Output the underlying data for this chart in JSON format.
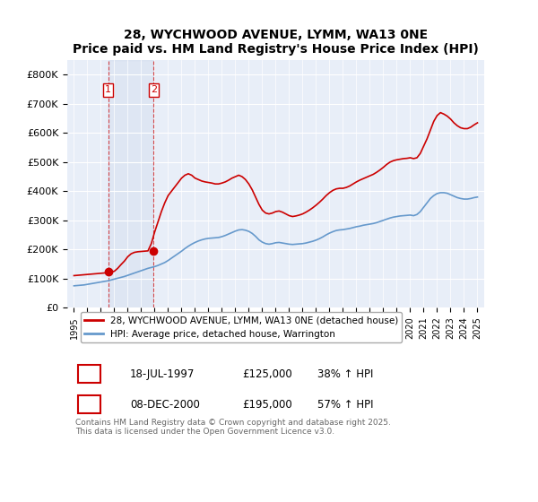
{
  "title": "28, WYCHWOOD AVENUE, LYMM, WA13 0NE",
  "subtitle": "Price paid vs. HM Land Registry's House Price Index (HPI)",
  "legend_label_red": "28, WYCHWOOD AVENUE, LYMM, WA13 0NE (detached house)",
  "legend_label_blue": "HPI: Average price, detached house, Warrington",
  "purchase1_label": "1",
  "purchase1_date": "18-JUL-1997",
  "purchase1_price": "£125,000",
  "purchase1_hpi": "38% ↑ HPI",
  "purchase1_year": 1997.54,
  "purchase1_value": 125000,
  "purchase2_label": "2",
  "purchase2_date": "08-DEC-2000",
  "purchase2_price": "£195,000",
  "purchase2_hpi": "57% ↑ HPI",
  "purchase2_year": 2000.93,
  "purchase2_value": 195000,
  "ylabel_values": [
    "£0",
    "£100K",
    "£200K",
    "£300K",
    "£400K",
    "£500K",
    "£600K",
    "£700K",
    "£800K"
  ],
  "ytick_values": [
    0,
    100000,
    200000,
    300000,
    400000,
    500000,
    600000,
    700000,
    800000
  ],
  "ylim": [
    0,
    850000
  ],
  "xlim_start": 1994.5,
  "xlim_end": 2025.5,
  "background_color": "#f0f4fa",
  "plot_bg_color": "#e8eef8",
  "grid_color": "#ffffff",
  "red_color": "#cc0000",
  "blue_color": "#6699cc",
  "copyright_text": "Contains HM Land Registry data © Crown copyright and database right 2025.\nThis data is licensed under the Open Government Licence v3.0.",
  "hpi_years": [
    1995,
    1995.25,
    1995.5,
    1995.75,
    1996,
    1996.25,
    1996.5,
    1996.75,
    1997,
    1997.25,
    1997.5,
    1997.75,
    1998,
    1998.25,
    1998.5,
    1998.75,
    1999,
    1999.25,
    1999.5,
    1999.75,
    2000,
    2000.25,
    2000.5,
    2000.75,
    2001,
    2001.25,
    2001.5,
    2001.75,
    2002,
    2002.25,
    2002.5,
    2002.75,
    2003,
    2003.25,
    2003.5,
    2003.75,
    2004,
    2004.25,
    2004.5,
    2004.75,
    2005,
    2005.25,
    2005.5,
    2005.75,
    2006,
    2006.25,
    2006.5,
    2006.75,
    2007,
    2007.25,
    2007.5,
    2007.75,
    2008,
    2008.25,
    2008.5,
    2008.75,
    2009,
    2009.25,
    2009.5,
    2009.75,
    2010,
    2010.25,
    2010.5,
    2010.75,
    2011,
    2011.25,
    2011.5,
    2011.75,
    2012,
    2012.25,
    2012.5,
    2012.75,
    2013,
    2013.25,
    2013.5,
    2013.75,
    2014,
    2014.25,
    2014.5,
    2014.75,
    2015,
    2015.25,
    2015.5,
    2015.75,
    2016,
    2016.25,
    2016.5,
    2016.75,
    2017,
    2017.25,
    2017.5,
    2017.75,
    2018,
    2018.25,
    2018.5,
    2018.75,
    2019,
    2019.25,
    2019.5,
    2019.75,
    2020,
    2020.25,
    2020.5,
    2020.75,
    2021,
    2021.25,
    2021.5,
    2021.75,
    2022,
    2022.25,
    2022.5,
    2022.75,
    2023,
    2023.25,
    2023.5,
    2023.75,
    2024,
    2024.25,
    2024.5,
    2024.75,
    2025
  ],
  "hpi_values": [
    75000,
    76000,
    77000,
    78000,
    80000,
    82000,
    84000,
    86000,
    88000,
    90000,
    92000,
    95000,
    98000,
    101000,
    104000,
    107000,
    111000,
    115000,
    119000,
    123000,
    127000,
    131000,
    135000,
    138000,
    141000,
    145000,
    150000,
    155000,
    162000,
    170000,
    178000,
    186000,
    194000,
    203000,
    211000,
    218000,
    224000,
    229000,
    233000,
    236000,
    238000,
    239000,
    240000,
    241000,
    244000,
    248000,
    253000,
    258000,
    263000,
    267000,
    268000,
    266000,
    262000,
    255000,
    245000,
    233000,
    225000,
    220000,
    218000,
    220000,
    223000,
    224000,
    222000,
    220000,
    218000,
    217000,
    218000,
    219000,
    220000,
    222000,
    225000,
    228000,
    232000,
    237000,
    243000,
    250000,
    256000,
    261000,
    265000,
    267000,
    268000,
    270000,
    272000,
    275000,
    278000,
    280000,
    283000,
    285000,
    287000,
    289000,
    292000,
    296000,
    300000,
    304000,
    308000,
    311000,
    313000,
    315000,
    316000,
    317000,
    318000,
    316000,
    320000,
    330000,
    345000,
    360000,
    375000,
    385000,
    392000,
    395000,
    395000,
    393000,
    388000,
    383000,
    378000,
    375000,
    373000,
    373000,
    375000,
    378000,
    380000
  ],
  "red_years": [
    1995,
    1995.25,
    1995.5,
    1995.75,
    1996,
    1996.25,
    1996.5,
    1996.75,
    1997,
    1997.25,
    1997.5,
    1997.75,
    1998,
    1998.25,
    1998.5,
    1998.75,
    1999,
    1999.25,
    1999.5,
    1999.75,
    2000,
    2000.25,
    2000.5,
    2000.75,
    2001,
    2001.25,
    2001.5,
    2001.75,
    2002,
    2002.25,
    2002.5,
    2002.75,
    2003,
    2003.25,
    2003.5,
    2003.75,
    2004,
    2004.25,
    2004.5,
    2004.75,
    2005,
    2005.25,
    2005.5,
    2005.75,
    2006,
    2006.25,
    2006.5,
    2006.75,
    2007,
    2007.25,
    2007.5,
    2007.75,
    2008,
    2008.25,
    2008.5,
    2008.75,
    2009,
    2009.25,
    2009.5,
    2009.75,
    2010,
    2010.25,
    2010.5,
    2010.75,
    2011,
    2011.25,
    2011.5,
    2011.75,
    2012,
    2012.25,
    2012.5,
    2012.75,
    2013,
    2013.25,
    2013.5,
    2013.75,
    2014,
    2014.25,
    2014.5,
    2014.75,
    2015,
    2015.25,
    2015.5,
    2015.75,
    2016,
    2016.25,
    2016.5,
    2016.75,
    2017,
    2017.25,
    2017.5,
    2017.75,
    2018,
    2018.25,
    2018.5,
    2018.75,
    2019,
    2019.25,
    2019.5,
    2019.75,
    2020,
    2020.25,
    2020.5,
    2020.75,
    2021,
    2021.25,
    2021.5,
    2021.75,
    2022,
    2022.25,
    2022.5,
    2022.75,
    2023,
    2023.25,
    2023.5,
    2023.75,
    2024,
    2024.25,
    2024.5,
    2024.75,
    2025
  ],
  "red_values": [
    110000,
    111000,
    112000,
    113000,
    114000,
    115000,
    116000,
    117000,
    118000,
    119000,
    120000,
    122000,
    125000,
    135000,
    148000,
    160000,
    175000,
    185000,
    190000,
    192000,
    193000,
    194000,
    195000,
    220000,
    260000,
    295000,
    330000,
    360000,
    385000,
    400000,
    415000,
    430000,
    445000,
    455000,
    460000,
    455000,
    445000,
    440000,
    435000,
    432000,
    430000,
    428000,
    425000,
    425000,
    428000,
    432000,
    438000,
    445000,
    450000,
    455000,
    450000,
    440000,
    425000,
    405000,
    380000,
    355000,
    335000,
    325000,
    322000,
    325000,
    330000,
    332000,
    328000,
    322000,
    316000,
    313000,
    315000,
    318000,
    322000,
    328000,
    335000,
    343000,
    352000,
    362000,
    373000,
    385000,
    395000,
    403000,
    408000,
    410000,
    410000,
    413000,
    418000,
    425000,
    432000,
    438000,
    443000,
    448000,
    453000,
    458000,
    465000,
    473000,
    482000,
    492000,
    500000,
    505000,
    508000,
    510000,
    512000,
    513000,
    515000,
    512000,
    515000,
    530000,
    555000,
    580000,
    610000,
    640000,
    660000,
    670000,
    665000,
    658000,
    648000,
    635000,
    625000,
    618000,
    615000,
    615000,
    620000,
    628000,
    635000
  ]
}
